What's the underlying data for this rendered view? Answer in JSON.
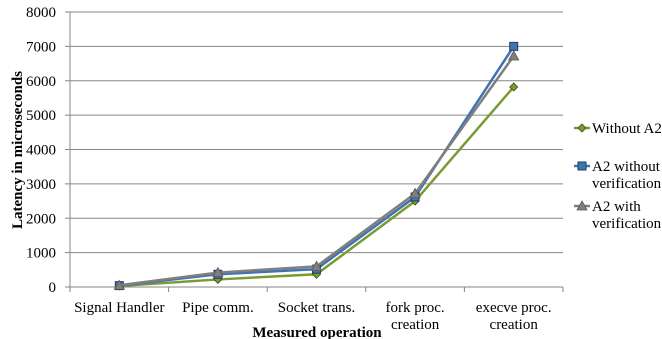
{
  "chart_data": {
    "type": "line",
    "title": "",
    "xlabel": "Measured operation",
    "ylabel": "Latency in microseconds",
    "categories": [
      [
        "Signal Handler"
      ],
      [
        "Pipe comm."
      ],
      [
        "Socket trans."
      ],
      [
        "fork proc.",
        "creation"
      ],
      [
        "execve proc.",
        "creation"
      ]
    ],
    "ylim": [
      0,
      8000
    ],
    "yticks": [
      "0",
      "1000",
      "2000",
      "3000",
      "4000",
      "5000",
      "6000",
      "7000",
      "8000"
    ],
    "grid": true,
    "legend_position": "right",
    "series": [
      {
        "name": [
          "Without A2"
        ],
        "values": [
          30,
          220,
          370,
          2500,
          5820
        ],
        "color": "#7a9a32",
        "marker": "diamond"
      },
      {
        "name": [
          "A2 without",
          "verification"
        ],
        "values": [
          40,
          370,
          520,
          2620,
          7000
        ],
        "color": "#3f74b3",
        "marker": "square"
      },
      {
        "name": [
          "A2 with",
          "verification"
        ],
        "values": [
          50,
          420,
          600,
          2720,
          6720
        ],
        "color": "#7f7f7f",
        "marker": "triangle"
      }
    ]
  }
}
